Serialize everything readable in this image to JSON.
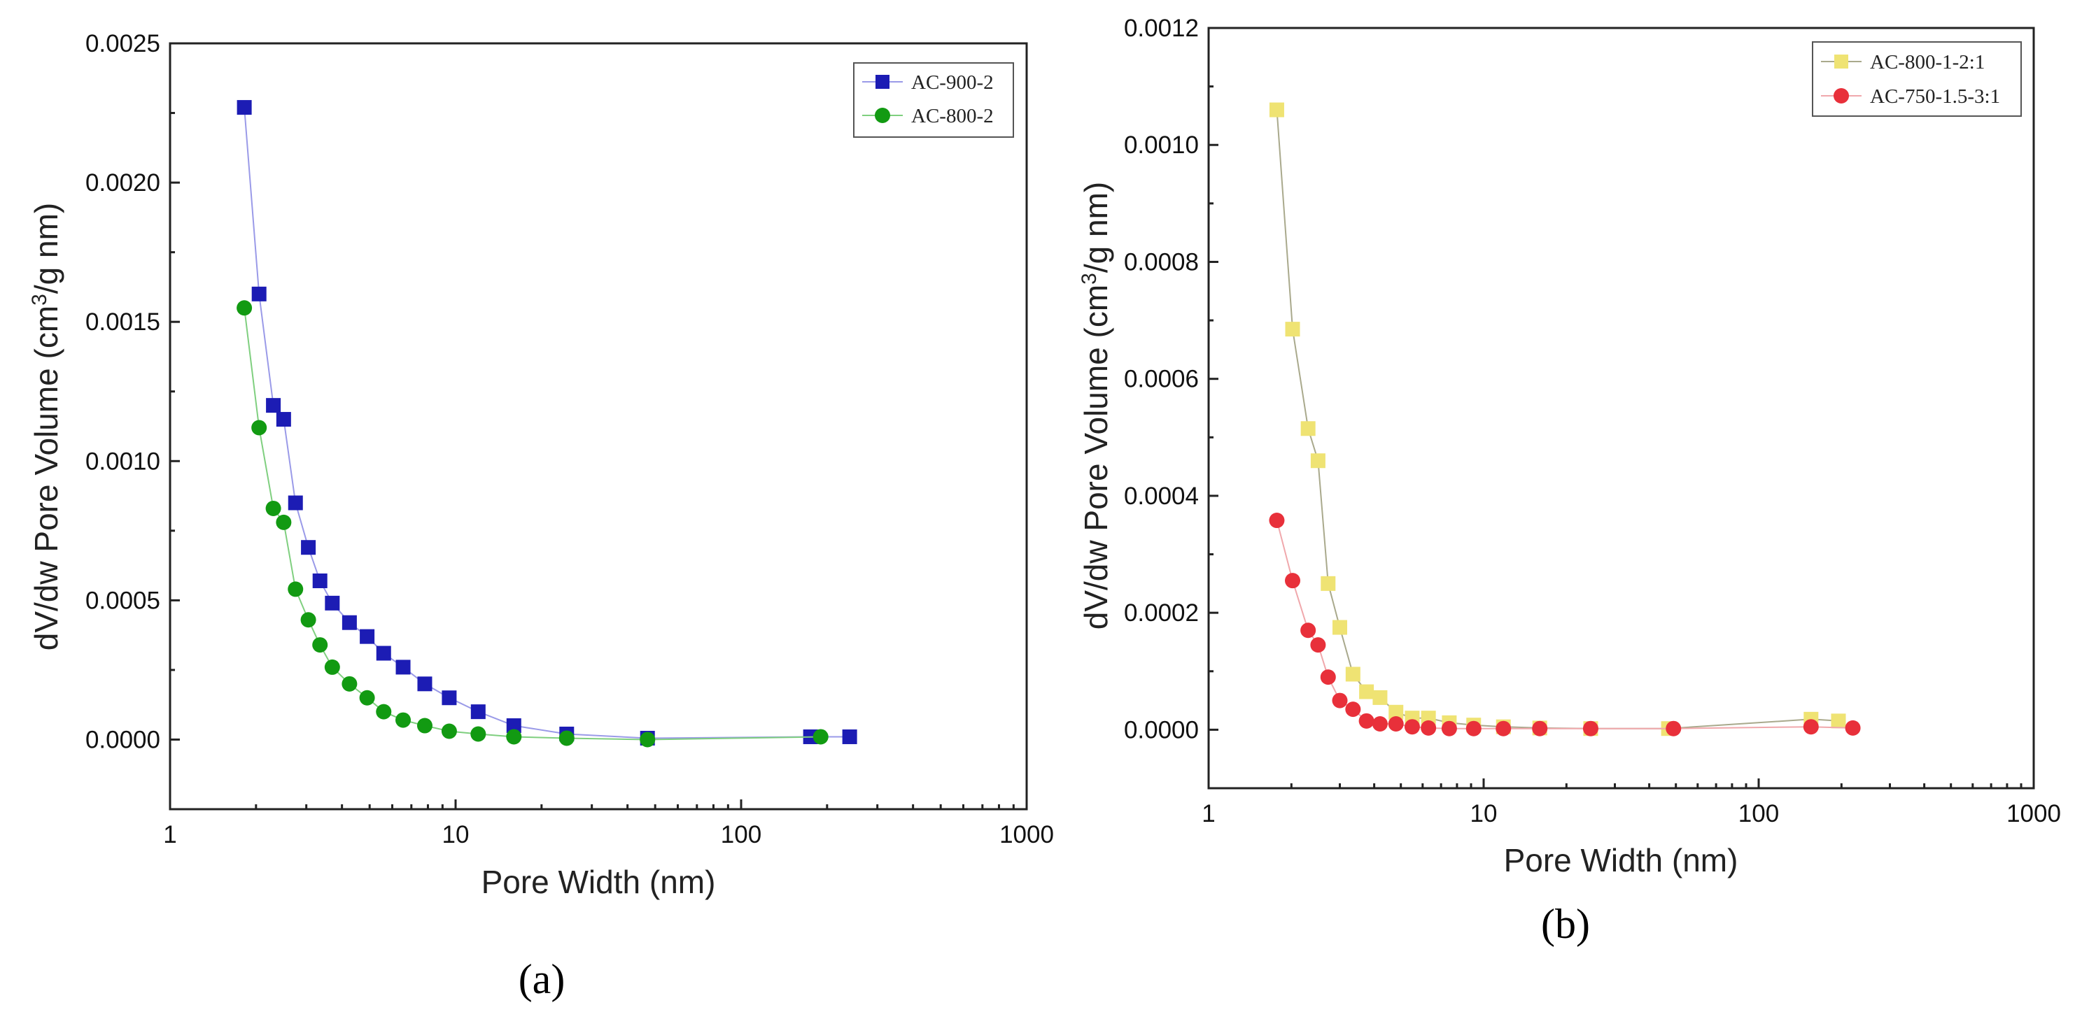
{
  "chart_data": [
    {
      "type": "scatter",
      "panel_label": "(a)",
      "xlabel": "Pore Width (nm)",
      "ylabel_main": "dV/dw Pore Volume (cm",
      "ylabel_sup": "3",
      "ylabel_tail": "/g nm)",
      "xscale": "log",
      "xlim": [
        1,
        1000
      ],
      "ylim": [
        -0.00025,
        0.0025
      ],
      "xticks": [
        1,
        10,
        100,
        1000
      ],
      "xtick_labels": [
        "1",
        "10",
        "100",
        "1000"
      ],
      "yticks": [
        0,
        0.0005,
        0.001,
        0.0015,
        0.002,
        0.0025
      ],
      "ytick_labels": [
        "0.0000",
        "0.0005",
        "0.0010",
        "0.0015",
        "0.0020",
        "0.0025"
      ],
      "legend_position": "top-right",
      "series": [
        {
          "name": "AC-900-2",
          "color": "#1c1cb4",
          "line_color": "#9a9ae8",
          "marker": "square",
          "x": [
            1.82,
            2.05,
            2.3,
            2.5,
            2.75,
            3.05,
            3.35,
            3.7,
            4.25,
            4.9,
            5.6,
            6.55,
            7.8,
            9.5,
            12.0,
            16.0,
            24.5,
            47.0,
            175.0,
            240.0
          ],
          "y": [
            0.00227,
            0.0016,
            0.0012,
            0.00115,
            0.00085,
            0.00069,
            0.00057,
            0.00049,
            0.00042,
            0.00037,
            0.00031,
            0.00026,
            0.0002,
            0.00015,
            0.0001,
            5e-05,
            2e-05,
            5e-06,
            1e-05,
            1e-05
          ]
        },
        {
          "name": "AC-800-2",
          "color": "#129a12",
          "line_color": "#7fcf7f",
          "marker": "circle",
          "x": [
            1.82,
            2.05,
            2.3,
            2.5,
            2.75,
            3.05,
            3.35,
            3.7,
            4.25,
            4.9,
            5.6,
            6.55,
            7.8,
            9.5,
            12.0,
            16.0,
            24.5,
            47.0,
            190.0
          ],
          "y": [
            0.00155,
            0.00112,
            0.00083,
            0.00078,
            0.00054,
            0.00043,
            0.00034,
            0.00026,
            0.0002,
            0.00015,
            0.0001,
            7e-05,
            5e-05,
            3e-05,
            2e-05,
            1e-05,
            5e-06,
            0.0,
            1e-05
          ]
        }
      ]
    },
    {
      "type": "scatter",
      "panel_label": "(b)",
      "xlabel": "Pore Width (nm)",
      "ylabel_main": "dV/dw Pore Volume (cm",
      "ylabel_sup": "3",
      "ylabel_tail": "/g nm)",
      "xscale": "log",
      "xlim": [
        1,
        1000
      ],
      "ylim": [
        -0.0001,
        0.0012
      ],
      "xticks": [
        1,
        10,
        100,
        1000
      ],
      "xtick_labels": [
        "1",
        "10",
        "100",
        "1000"
      ],
      "yticks": [
        0,
        0.0002,
        0.0004,
        0.0006,
        0.0008,
        0.001,
        0.0012
      ],
      "ytick_labels": [
        "0.0000",
        "0.0002",
        "0.0004",
        "0.0006",
        "0.0008",
        "0.0010",
        "0.0012"
      ],
      "legend_position": "top-right",
      "series": [
        {
          "name": "AC-800-1-2:1",
          "color": "#efe373",
          "line_color": "#a9a98c",
          "marker": "square",
          "x": [
            1.77,
            2.02,
            2.3,
            2.5,
            2.72,
            3.0,
            3.35,
            3.75,
            4.2,
            4.8,
            5.5,
            6.3,
            7.5,
            9.2,
            11.8,
            16.0,
            24.5,
            47.0,
            155.0,
            195.0
          ],
          "y": [
            0.00106,
            0.000685,
            0.000515,
            0.00046,
            0.00025,
            0.000175,
            9.5e-05,
            6.5e-05,
            5.5e-05,
            3e-05,
            2e-05,
            2e-05,
            1.2e-05,
            8e-06,
            5e-06,
            3e-06,
            2e-06,
            2e-06,
            1.8e-05,
            1.5e-05
          ]
        },
        {
          "name": "AC-750-1.5-3:1",
          "color": "#e8303a",
          "line_color": "#f0a8ac",
          "marker": "circle",
          "x": [
            1.77,
            2.02,
            2.3,
            2.5,
            2.72,
            3.0,
            3.35,
            3.75,
            4.2,
            4.8,
            5.5,
            6.3,
            7.5,
            9.2,
            11.8,
            16.0,
            24.5,
            49.0,
            155.0,
            220.0
          ],
          "y": [
            0.000358,
            0.000255,
            0.00017,
            0.000145,
            9e-05,
            5e-05,
            3.5e-05,
            1.5e-05,
            1e-05,
            1e-05,
            5e-06,
            3e-06,
            2e-06,
            2e-06,
            2e-06,
            2e-06,
            2e-06,
            2e-06,
            5e-06,
            3e-06
          ]
        }
      ]
    }
  ]
}
